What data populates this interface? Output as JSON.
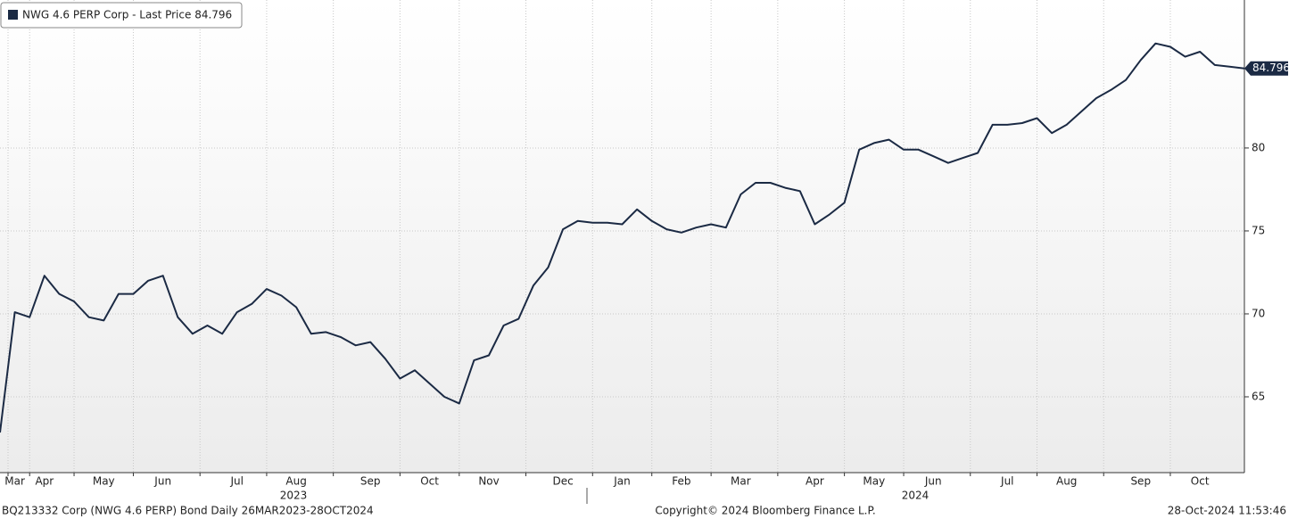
{
  "chart_data": {
    "type": "line",
    "series": [
      {
        "name": "NWG 4.6 PERP Corp - Last Price 84.796",
        "color": "#1b2a44",
        "values": [
          62.85,
          70.1,
          69.8,
          72.3,
          71.2,
          70.75,
          69.8,
          69.6,
          71.2,
          71.2,
          72.0,
          72.3,
          69.8,
          68.8,
          69.3,
          68.8,
          70.1,
          70.6,
          71.5,
          71.1,
          70.4,
          68.8,
          68.9,
          68.6,
          68.1,
          68.3,
          67.3,
          66.1,
          66.6,
          65.8,
          65.0,
          64.6,
          67.2,
          67.5,
          69.3,
          69.7,
          71.7,
          72.8,
          75.1,
          75.6,
          75.5,
          75.5,
          75.4,
          76.3,
          75.6,
          75.1,
          74.9,
          75.2,
          75.4,
          75.2,
          77.2,
          77.9,
          77.9,
          77.6,
          77.4,
          75.4,
          76.0,
          76.7,
          79.9,
          80.3,
          80.5,
          79.9,
          79.9,
          79.5,
          79.1,
          79.4,
          79.7,
          81.4,
          81.4,
          81.5,
          81.8,
          80.9,
          81.4,
          82.2,
          83.0,
          83.5,
          84.1,
          85.3,
          86.3,
          86.1,
          85.5,
          85.8,
          85.0,
          84.9,
          84.796
        ]
      }
    ],
    "categories": [
      null,
      "Mar",
      null,
      "Apr",
      null,
      null,
      null,
      "May",
      null,
      null,
      null,
      "Jun",
      null,
      null,
      null,
      null,
      "Jul",
      null,
      null,
      null,
      "Aug",
      null,
      null,
      null,
      null,
      "Sep",
      null,
      null,
      null,
      "Oct",
      null,
      null,
      null,
      "Nov",
      null,
      null,
      null,
      null,
      "Dec",
      null,
      null,
      null,
      "Jan",
      null,
      null,
      null,
      "Feb",
      null,
      null,
      null,
      "Mar",
      null,
      null,
      null,
      null,
      "Apr",
      null,
      null,
      null,
      "May",
      null,
      null,
      null,
      "Jun",
      null,
      null,
      null,
      null,
      "Jul",
      null,
      null,
      null,
      "Aug",
      null,
      null,
      null,
      null,
      "Sep",
      null,
      null,
      null,
      "Oct",
      null,
      null,
      null
    ],
    "years": [
      "2023",
      "2024"
    ],
    "ylim": [
      60.43,
      88.92
    ],
    "yticks": [
      65,
      70,
      75,
      80
    ],
    "grid": true,
    "footer": {
      "left": "BQ213332 Corp (NWG 4.6 PERP) Bond  Daily 26MAR2023-28OCT2024",
      "center": "Copyright© 2024 Bloomberg Finance L.P.",
      "right": "28-Oct-2024 11:53:46"
    }
  }
}
